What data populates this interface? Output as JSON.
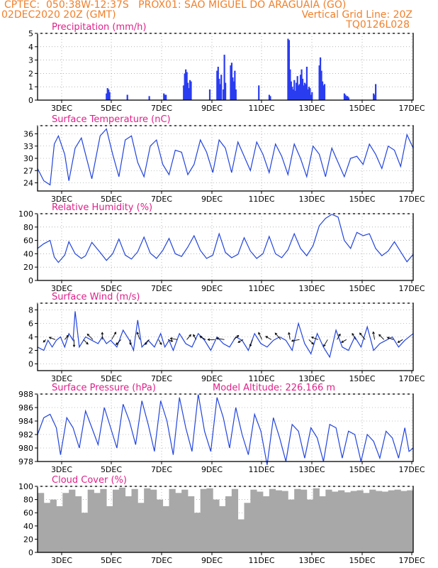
{
  "header": {
    "line1": "CPTEC:  050:38W-12:37S   PROX01: SAO MIGUEL DO ARAGUAIA (GO)",
    "line2_left": "02DEC2020 20Z (GMT)",
    "line2_right": "Vertical Grid Line: 20Z",
    "line3_right": "TQ0126L028"
  },
  "colors": {
    "line": "#2244dd",
    "bar": "#2a3cf0",
    "cloud": "#a8a8a8",
    "title": "#e0208a",
    "header": "#f07f2a",
    "arrow": "#000000"
  },
  "x_labels": [
    "3DEC",
    "5DEC",
    "7DEC",
    "9DEC",
    "11DEC",
    "13DEC",
    "15DEC",
    "17DEC"
  ],
  "chart_data": [
    {
      "type": "bar",
      "title": "Precipitation (mm/h)",
      "ylim": [
        0,
        5
      ],
      "yticks": [
        0,
        1,
        2,
        3,
        4,
        5
      ],
      "x_range": [
        0,
        360
      ],
      "x": [
        66,
        67,
        68,
        69,
        86,
        107,
        121,
        122,
        123,
        140,
        141,
        142,
        143,
        144,
        145,
        146,
        147,
        165,
        172,
        173,
        174,
        175,
        176,
        178,
        179,
        180,
        185,
        186,
        187,
        188,
        189,
        190,
        212,
        222,
        223,
        240,
        241,
        242,
        243,
        244,
        245,
        246,
        247,
        248,
        249,
        250,
        251,
        252,
        253,
        254,
        255,
        256,
        257,
        258,
        259,
        260,
        261,
        262,
        263,
        270,
        271,
        272,
        273,
        274,
        275,
        294,
        295,
        296,
        297,
        298,
        322,
        323,
        324
      ],
      "values": [
        0.5,
        0.9,
        0.8,
        0.6,
        0.4,
        0.3,
        0.5,
        0.4,
        0.4,
        1.1,
        2.0,
        2.3,
        2.1,
        1.3,
        0.9,
        1.5,
        1.4,
        0.8,
        2.2,
        2.5,
        1.6,
        1.2,
        1.9,
        0.8,
        3.4,
        1.3,
        2.6,
        2.8,
        1.7,
        1.4,
        2.2,
        0.8,
        1.1,
        0.4,
        0.3,
        4.6,
        4.5,
        2.3,
        1.4,
        1.0,
        0.8,
        1.5,
        0.7,
        1.3,
        1.8,
        1.1,
        1.2,
        1.9,
        2.3,
        1.6,
        1.1,
        1.3,
        1.2,
        2.5,
        0.8,
        1.0,
        0.9,
        0.4,
        0.6,
        2.6,
        3.2,
        2.2,
        1.4,
        1.1,
        1.2,
        0.5,
        0.4,
        0.3,
        0.3,
        0.2,
        0.5,
        0.4,
        1.2
      ]
    },
    {
      "type": "line",
      "title": "Surface Temperature (nC)",
      "ylim": [
        22,
        38
      ],
      "yticks": [
        24,
        27,
        30,
        33,
        36
      ],
      "x_range": [
        0,
        360
      ],
      "x": [
        0,
        6,
        12,
        16,
        20,
        26,
        30,
        36,
        42,
        46,
        52,
        60,
        66,
        72,
        78,
        84,
        90,
        96,
        102,
        108,
        114,
        120,
        126,
        132,
        138,
        144,
        150,
        156,
        162,
        168,
        174,
        180,
        186,
        192,
        198,
        204,
        210,
        216,
        222,
        228,
        234,
        240,
        246,
        252,
        258,
        264,
        270,
        276,
        282,
        288,
        294,
        300,
        306,
        312,
        318,
        324,
        330,
        336,
        342,
        348,
        354,
        360
      ],
      "values": [
        27.5,
        24.5,
        23.5,
        33.5,
        35.5,
        31,
        24.5,
        32.5,
        35,
        31,
        25,
        35.5,
        37.2,
        31,
        25.5,
        34.5,
        35.5,
        29,
        25.5,
        33,
        34.5,
        28.5,
        26,
        32,
        31.5,
        26,
        28.5,
        34.5,
        31.5,
        26.5,
        34.5,
        32.5,
        26.5,
        34,
        30.5,
        27,
        34,
        31,
        26.5,
        33.5,
        30.5,
        26,
        33.5,
        30,
        25.5,
        33,
        31,
        25.5,
        32.5,
        29,
        25.5,
        30,
        30.5,
        28.5,
        33.5,
        31,
        27.5,
        33,
        32,
        28,
        35.8,
        32.5
      ]
    },
    {
      "type": "line",
      "title": "Relative Humidity (%)",
      "ylim": [
        0,
        100
      ],
      "yticks": [
        0,
        20,
        40,
        60,
        80,
        100
      ],
      "x_range": [
        0,
        360
      ],
      "x": [
        0,
        6,
        12,
        16,
        20,
        26,
        30,
        36,
        42,
        46,
        52,
        60,
        66,
        72,
        78,
        84,
        90,
        96,
        102,
        108,
        114,
        120,
        126,
        132,
        138,
        144,
        150,
        156,
        162,
        168,
        174,
        180,
        186,
        192,
        198,
        204,
        210,
        216,
        222,
        228,
        234,
        240,
        246,
        252,
        258,
        264,
        270,
        276,
        282,
        288,
        294,
        300,
        306,
        312,
        318,
        324,
        330,
        336,
        342,
        348,
        354,
        360
      ],
      "values": [
        48,
        55,
        60,
        35,
        27,
        38,
        58,
        40,
        33,
        37,
        57,
        42,
        30,
        40,
        62,
        38,
        32,
        43,
        65,
        41,
        33,
        45,
        63,
        40,
        36,
        50,
        67,
        45,
        33,
        38,
        70,
        42,
        34,
        39,
        64,
        44,
        33,
        40,
        66,
        40,
        34,
        46,
        70,
        48,
        37,
        52,
        82,
        93,
        99,
        95,
        60,
        48,
        72,
        67,
        70,
        48,
        37,
        44,
        58,
        43,
        28,
        39
      ]
    },
    {
      "type": "line",
      "title": "Surface Wind (m/s)",
      "ylim": [
        -1,
        9
      ],
      "yticks": [
        0,
        2,
        4,
        6,
        8
      ],
      "x_range": [
        0,
        360
      ],
      "x": [
        0,
        6,
        10,
        14,
        18,
        22,
        26,
        30,
        34,
        36,
        40,
        46,
        52,
        58,
        62,
        66,
        70,
        76,
        82,
        88,
        92,
        96,
        100,
        106,
        112,
        118,
        122,
        126,
        130,
        136,
        142,
        148,
        154,
        160,
        166,
        172,
        178,
        184,
        190,
        196,
        202,
        208,
        214,
        220,
        226,
        232,
        238,
        244,
        250,
        256,
        262,
        268,
        274,
        280,
        286,
        292,
        298,
        304,
        310,
        316,
        322,
        328,
        334,
        340,
        346,
        352,
        360
      ],
      "values": [
        2.5,
        2.0,
        3.5,
        2.5,
        3.5,
        4.0,
        2.5,
        4.5,
        3.5,
        7.8,
        2.5,
        4.0,
        3.5,
        3.0,
        4.0,
        3.0,
        3.5,
        2.5,
        5.0,
        3.5,
        2.0,
        6.5,
        2.5,
        3.5,
        2.5,
        4.5,
        2.5,
        3.5,
        2.0,
        4.5,
        3.0,
        2.5,
        4.5,
        3.5,
        2.0,
        4.0,
        3.0,
        2.5,
        4.0,
        3.5,
        2.0,
        4.5,
        3.0,
        2.5,
        3.5,
        4.0,
        3.5,
        2.0,
        6.0,
        3.0,
        1.5,
        4.5,
        2.5,
        1.0,
        5.0,
        2.5,
        2.0,
        4.0,
        2.5,
        5.5,
        2.0,
        3.0,
        3.5,
        4.0,
        2.5,
        3.5,
        4.5
      ],
      "arrows_x": [
        8,
        17,
        26,
        35,
        44,
        53,
        62,
        71,
        80,
        89,
        98,
        107,
        116,
        125,
        134,
        143,
        152,
        161,
        170,
        179,
        188,
        197,
        206,
        215,
        224,
        233,
        242,
        251,
        260,
        269,
        278,
        287,
        296,
        305,
        314,
        323,
        332,
        341,
        350
      ],
      "arrows_dir_deg": [
        135,
        200,
        310,
        90,
        45,
        225,
        270,
        300,
        135,
        90,
        250,
        130,
        60,
        20,
        190,
        310,
        240,
        210,
        180,
        190,
        320,
        150,
        110,
        245,
        210,
        230,
        260,
        170,
        45,
        200,
        120,
        300,
        150,
        240,
        230,
        260,
        225,
        200,
        150
      ],
      "arrows_len": [
        5,
        9,
        8,
        10,
        9,
        11,
        10,
        12,
        10,
        7,
        11,
        9,
        8,
        7,
        10,
        9,
        8,
        9,
        10,
        11,
        9,
        8,
        10,
        11,
        9,
        12,
        10,
        11,
        9,
        10,
        11,
        9,
        8,
        10,
        12,
        11,
        10,
        9,
        8
      ]
    },
    {
      "type": "line",
      "title": "Surface Pressure (hPa)",
      "annotation": "Model Altitude: 226.166 m",
      "ylim": [
        978,
        988
      ],
      "yticks": [
        978,
        980,
        982,
        984,
        986,
        988
      ],
      "x_range": [
        0,
        360
      ],
      "x": [
        0,
        6,
        12,
        18,
        22,
        28,
        34,
        40,
        46,
        52,
        58,
        64,
        70,
        76,
        82,
        88,
        94,
        100,
        106,
        112,
        118,
        124,
        130,
        136,
        142,
        148,
        154,
        160,
        166,
        172,
        178,
        184,
        190,
        196,
        202,
        208,
        214,
        220,
        226,
        232,
        238,
        244,
        250,
        256,
        262,
        268,
        274,
        280,
        286,
        292,
        298,
        304,
        310,
        316,
        322,
        328,
        334,
        340,
        346,
        352,
        356,
        360
      ],
      "values": [
        982,
        984.5,
        985,
        983,
        979,
        984.5,
        983,
        980,
        985.5,
        983,
        980.5,
        986,
        983,
        980,
        986.5,
        984,
        980.5,
        987,
        983.5,
        979.5,
        987,
        984,
        979,
        987.5,
        983,
        979.5,
        988,
        982.5,
        979.5,
        987.5,
        984.5,
        980,
        986,
        982,
        979,
        985,
        982.5,
        977.5,
        984.5,
        981.5,
        978,
        983.5,
        982.5,
        978.5,
        983,
        981.5,
        978,
        983.5,
        983,
        978.5,
        982.5,
        982,
        978,
        982,
        981,
        978.5,
        982.5,
        981.5,
        978.5,
        983,
        979.5,
        980
      ]
    },
    {
      "type": "bar",
      "title": "Cloud Cover (%)",
      "ylim": [
        0,
        100
      ],
      "yticks": [
        0,
        20,
        40,
        60,
        80,
        100
      ],
      "x_range": [
        0,
        360
      ],
      "x": [
        0,
        6,
        12,
        18,
        24,
        30,
        36,
        42,
        48,
        54,
        60,
        66,
        72,
        78,
        84,
        90,
        96,
        102,
        108,
        114,
        120,
        126,
        132,
        138,
        144,
        150,
        156,
        162,
        168,
        174,
        180,
        186,
        192,
        198,
        204,
        210,
        216,
        222,
        228,
        234,
        240,
        246,
        252,
        258,
        264,
        270,
        276,
        282,
        288,
        294,
        300,
        306,
        312,
        318,
        324,
        330,
        336,
        342,
        348,
        354
      ],
      "values": [
        90,
        75,
        80,
        70,
        90,
        95,
        85,
        60,
        95,
        90,
        96,
        70,
        95,
        98,
        85,
        96,
        75,
        97,
        95,
        80,
        70,
        96,
        90,
        95,
        85,
        60,
        96,
        97,
        80,
        70,
        85,
        96,
        50,
        75,
        95,
        92,
        85,
        96,
        94,
        93,
        80,
        96,
        95,
        80,
        97,
        85,
        95,
        92,
        94,
        91,
        93,
        94,
        90,
        95,
        93,
        92,
        94,
        95,
        93,
        94
      ]
    }
  ]
}
